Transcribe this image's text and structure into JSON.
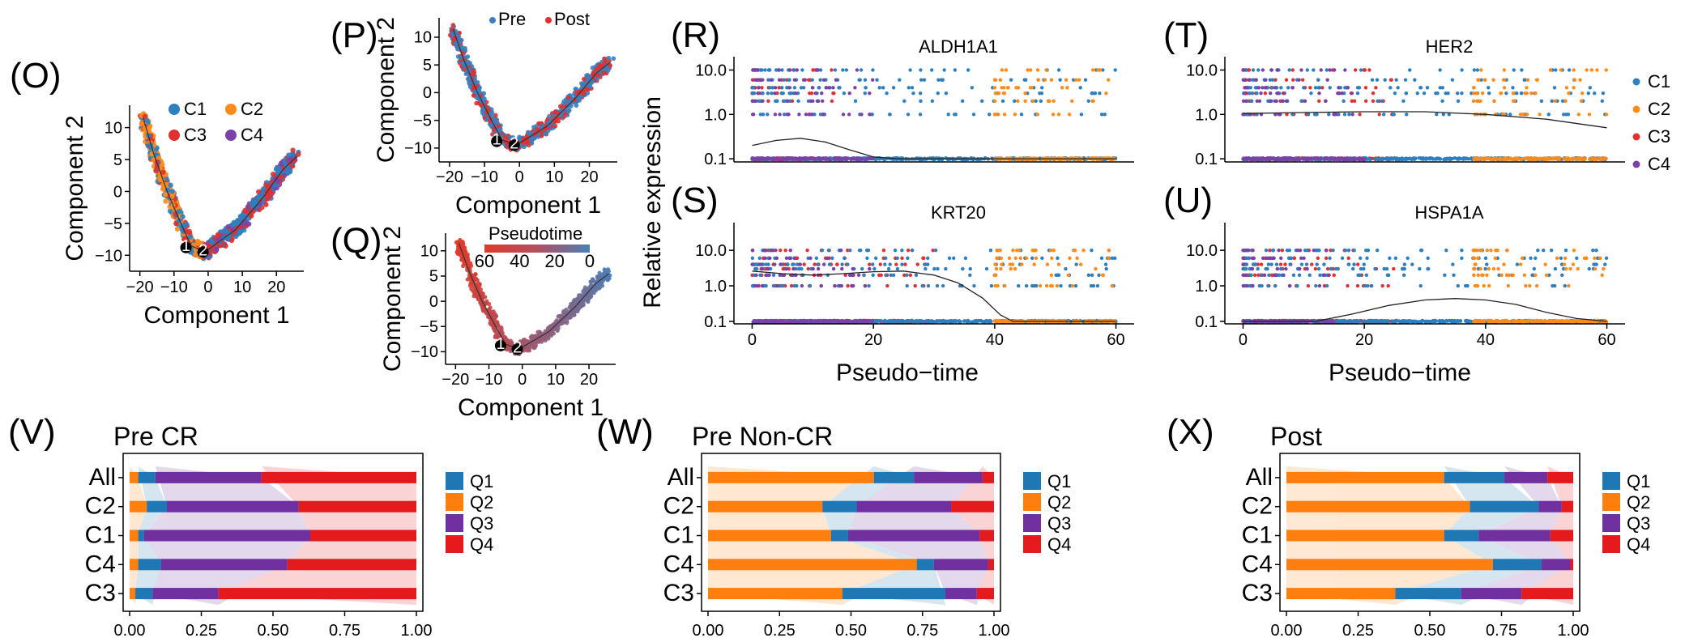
{
  "palette": {
    "C1": "#2e7fbf",
    "C2": "#ff8c1a",
    "C3": "#e03030",
    "C4": "#7a42a8",
    "Q1": "#1f77b4",
    "Q2": "#ff7f0e",
    "Q3": "#7030a0",
    "Q4": "#e41a1c",
    "Pre": "#3a7fbf",
    "Post": "#e03030",
    "pseudo_low": "#4a7fb8",
    "pseudo_mid": "#b05060",
    "pseudo_high": "#e03a2a"
  },
  "chart_data": [
    {
      "id": "O",
      "panel_label": "(O)",
      "type": "scatter",
      "xlabel": "Component 1",
      "ylabel": "Component 2",
      "xlim": [
        -23,
        28
      ],
      "ylim": [
        -12.5,
        13.5
      ],
      "xticks": [
        -20,
        -10,
        0,
        10,
        20
      ],
      "yticks": [
        -10,
        -5,
        0,
        5,
        10
      ],
      "xtick_labels": [
        "−20",
        "−10",
        "0",
        "10",
        "20"
      ],
      "ytick_labels": [
        "−10",
        "−5",
        "0",
        "5",
        "10"
      ],
      "legend": [
        {
          "name": "C1",
          "color_key": "C1"
        },
        {
          "name": "C2",
          "color_key": "C2"
        },
        {
          "name": "C3",
          "color_key": "C3"
        },
        {
          "name": "C4",
          "color_key": "C4"
        }
      ],
      "trajectory": [
        [
          -19,
          11.5
        ],
        [
          -16,
          6
        ],
        [
          -12,
          0
        ],
        [
          -8,
          -5
        ],
        [
          -5,
          -8.5
        ],
        [
          -1,
          -9.5
        ],
        [
          8,
          -6
        ],
        [
          16,
          -1
        ],
        [
          22,
          3.5
        ],
        [
          26,
          5.5
        ]
      ],
      "branch_points": [
        {
          "label": "1",
          "x": -6.5,
          "y": -8.8
        },
        {
          "label": "2",
          "x": -1.5,
          "y": -9.5
        }
      ]
    },
    {
      "id": "P",
      "panel_label": "(P)",
      "type": "scatter",
      "xlabel": "Component 1",
      "ylabel": "Component 2",
      "xlim": [
        -23,
        28
      ],
      "ylim": [
        -12.5,
        13.5
      ],
      "xticks": [
        -20,
        -10,
        0,
        10,
        20
      ],
      "yticks": [
        -10,
        -5,
        0,
        5,
        10
      ],
      "xtick_labels": [
        "−20",
        "−10",
        "0",
        "10",
        "20"
      ],
      "ytick_labels": [
        "−10",
        "−5",
        "0",
        "5",
        "10"
      ],
      "legend": [
        {
          "name": "Pre",
          "color_key": "Pre"
        },
        {
          "name": "Post",
          "color_key": "Post"
        }
      ],
      "trajectory": [
        [
          -19,
          11.5
        ],
        [
          -16,
          6
        ],
        [
          -12,
          0
        ],
        [
          -8,
          -5
        ],
        [
          -5,
          -8.5
        ],
        [
          -1,
          -9.5
        ],
        [
          8,
          -6
        ],
        [
          16,
          -1
        ],
        [
          22,
          3.5
        ],
        [
          26,
          5.5
        ]
      ],
      "branch_points": [
        {
          "label": "1",
          "x": -6.5,
          "y": -8.8
        },
        {
          "label": "2",
          "x": -1.5,
          "y": -9.5
        }
      ]
    },
    {
      "id": "Q",
      "panel_label": "(Q)",
      "type": "scatter",
      "xlabel": "Component 1",
      "ylabel": "Component 2",
      "xlim": [
        -23,
        28
      ],
      "ylim": [
        -12.5,
        13.5
      ],
      "xticks": [
        -20,
        -10,
        0,
        10,
        20
      ],
      "yticks": [
        -10,
        -5,
        0,
        5,
        10
      ],
      "xtick_labels": [
        "−20",
        "−10",
        "0",
        "10",
        "20"
      ],
      "ytick_labels": [
        "−10",
        "−5",
        "0",
        "5",
        "10"
      ],
      "colorbar": {
        "title": "Pseudotime",
        "ticks": [
          60,
          40,
          20,
          0
        ],
        "tick_labels": [
          "60",
          "40",
          "20",
          "0"
        ],
        "range": [
          0,
          60
        ]
      },
      "trajectory": [
        [
          -19,
          11.5
        ],
        [
          -16,
          6
        ],
        [
          -12,
          0
        ],
        [
          -8,
          -5
        ],
        [
          -5,
          -8.5
        ],
        [
          -1,
          -9.5
        ],
        [
          8,
          -6
        ],
        [
          16,
          -1
        ],
        [
          22,
          3.5
        ],
        [
          26,
          5.5
        ]
      ],
      "branch_points": [
        {
          "label": "1",
          "x": -6.5,
          "y": -8.8
        },
        {
          "label": "2",
          "x": -1.5,
          "y": -9.5
        }
      ]
    },
    {
      "id": "R",
      "panel_label": "(R)",
      "type": "scatter",
      "gene": "ALDH1A1",
      "xlim": [
        -3,
        63
      ],
      "xticks": [
        0,
        20,
        40,
        60
      ],
      "xtick_labels": [
        "0",
        "20",
        "40",
        "60"
      ],
      "yscale": "log",
      "ylim": [
        0.085,
        20
      ],
      "yticks": [
        0.1,
        1.0,
        10.0
      ],
      "ytick_labels": [
        "0.1",
        "1.0",
        "10.0"
      ],
      "cluster_ranges": [
        {
          "cluster": "C3",
          "x": [
            0,
            15
          ]
        },
        {
          "cluster": "C1",
          "x": [
            0,
            60
          ]
        },
        {
          "cluster": "C2",
          "x": [
            40,
            60
          ]
        },
        {
          "cluster": "C4",
          "x": [
            0,
            20
          ]
        }
      ],
      "trend": [
        [
          0,
          0.2
        ],
        [
          4,
          0.26
        ],
        [
          8,
          0.29
        ],
        [
          12,
          0.24
        ],
        [
          16,
          0.16
        ],
        [
          20,
          0.11
        ],
        [
          24,
          0.1
        ],
        [
          60,
          0.1
        ]
      ]
    },
    {
      "id": "T",
      "panel_label": "(T)",
      "type": "scatter",
      "gene": "HER2",
      "xlim": [
        -3,
        63
      ],
      "xticks": [
        0,
        20,
        40,
        60
      ],
      "xtick_labels": [
        "0",
        "20",
        "40",
        "60"
      ],
      "yscale": "log",
      "ylim": [
        0.085,
        20
      ],
      "yticks": [
        0.1,
        1.0,
        10.0
      ],
      "ytick_labels": [
        "0.1",
        "1.0",
        "10.0"
      ],
      "legend": [
        {
          "name": "C1",
          "color_key": "C1"
        },
        {
          "name": "C2",
          "color_key": "C2"
        },
        {
          "name": "C3",
          "color_key": "C3"
        },
        {
          "name": "C4",
          "color_key": "C4"
        }
      ],
      "cluster_ranges": [
        {
          "cluster": "C3",
          "x": [
            0,
            25
          ]
        },
        {
          "cluster": "C1",
          "x": [
            0,
            60
          ]
        },
        {
          "cluster": "C2",
          "x": [
            38,
            60
          ]
        },
        {
          "cluster": "C4",
          "x": [
            0,
            20
          ]
        }
      ],
      "trend": [
        [
          0,
          1.05
        ],
        [
          10,
          1.1
        ],
        [
          20,
          1.15
        ],
        [
          30,
          1.15
        ],
        [
          40,
          1.0
        ],
        [
          50,
          0.78
        ],
        [
          60,
          0.5
        ]
      ]
    },
    {
      "id": "S",
      "panel_label": "(S)",
      "type": "scatter",
      "gene": "KRT20",
      "xlim": [
        -3,
        63
      ],
      "xticks": [
        0,
        20,
        40,
        60
      ],
      "xtick_labels": [
        "0",
        "20",
        "40",
        "60"
      ],
      "yscale": "log",
      "ylim": [
        0.085,
        60
      ],
      "yticks": [
        0.1,
        1.0,
        10.0
      ],
      "ytick_labels": [
        "0.1",
        "1.0",
        "10.0"
      ],
      "axis_title": "Relative expression",
      "cluster_ranges": [
        {
          "cluster": "C3",
          "x": [
            0,
            30
          ]
        },
        {
          "cluster": "C1",
          "x": [
            0,
            60
          ]
        },
        {
          "cluster": "C2",
          "x": [
            40,
            60
          ]
        },
        {
          "cluster": "C4",
          "x": [
            0,
            20
          ]
        }
      ],
      "trend": [
        [
          0,
          2.6
        ],
        [
          5,
          2.2
        ],
        [
          10,
          2.0
        ],
        [
          15,
          2.2
        ],
        [
          20,
          2.5
        ],
        [
          25,
          2.6
        ],
        [
          30,
          2.0
        ],
        [
          34,
          1.2
        ],
        [
          38,
          0.45
        ],
        [
          41,
          0.15
        ],
        [
          43,
          0.1
        ],
        [
          60,
          0.1
        ]
      ]
    },
    {
      "id": "U",
      "panel_label": "(U)",
      "type": "scatter",
      "gene": "HSPA1A",
      "xlim": [
        -3,
        63
      ],
      "xticks": [
        0,
        20,
        40,
        60
      ],
      "xtick_labels": [
        "0",
        "20",
        "40",
        "60"
      ],
      "yscale": "log",
      "ylim": [
        0.085,
        60
      ],
      "yticks": [
        0.1,
        1.0,
        10.0
      ],
      "ytick_labels": [
        "0.1",
        "1.0",
        "10.0"
      ],
      "cluster_ranges": [
        {
          "cluster": "C3",
          "x": [
            0,
            25
          ]
        },
        {
          "cluster": "C1",
          "x": [
            0,
            60
          ]
        },
        {
          "cluster": "C2",
          "x": [
            38,
            60
          ]
        },
        {
          "cluster": "C4",
          "x": [
            0,
            15
          ]
        }
      ],
      "trend": [
        [
          0,
          0.1
        ],
        [
          12,
          0.1
        ],
        [
          18,
          0.16
        ],
        [
          24,
          0.28
        ],
        [
          30,
          0.4
        ],
        [
          35,
          0.44
        ],
        [
          40,
          0.4
        ],
        [
          45,
          0.3
        ],
        [
          50,
          0.18
        ],
        [
          55,
          0.12
        ],
        [
          60,
          0.1
        ]
      ]
    },
    {
      "id": "V",
      "panel_label": "(V)",
      "type": "bar",
      "orientation": "horizontal",
      "stacked": true,
      "subtitle": "Pre CR",
      "categories": [
        "All",
        "C2",
        "C1",
        "C4",
        "C3"
      ],
      "xlim": [
        0,
        1
      ],
      "xticks": [
        0,
        0.25,
        0.5,
        0.75,
        1.0
      ],
      "xtick_labels": [
        "0.00",
        "0.25",
        "0.50",
        "0.75",
        "1.00"
      ],
      "series": [
        {
          "name": "Q2",
          "values": [
            0.03,
            0.06,
            0.03,
            0.03,
            0.02
          ]
        },
        {
          "name": "Q1",
          "values": [
            0.06,
            0.07,
            0.02,
            0.08,
            0.06
          ]
        },
        {
          "name": "Q3",
          "values": [
            0.37,
            0.46,
            0.58,
            0.44,
            0.23
          ]
        },
        {
          "name": "Q4",
          "values": [
            0.54,
            0.41,
            0.37,
            0.45,
            0.69
          ]
        }
      ],
      "legend": [
        "Q1",
        "Q2",
        "Q3",
        "Q4"
      ]
    },
    {
      "id": "W",
      "panel_label": "(W)",
      "type": "bar",
      "orientation": "horizontal",
      "stacked": true,
      "subtitle": "Pre Non-CR",
      "categories": [
        "All",
        "C2",
        "C1",
        "C4",
        "C3"
      ],
      "xlim": [
        0,
        1
      ],
      "xticks": [
        0,
        0.25,
        0.5,
        0.75,
        1.0
      ],
      "xtick_labels": [
        "0.00",
        "0.25",
        "0.50",
        "0.75",
        "1.00"
      ],
      "series": [
        {
          "name": "Q2",
          "values": [
            0.58,
            0.4,
            0.43,
            0.73,
            0.47
          ]
        },
        {
          "name": "Q1",
          "values": [
            0.14,
            0.12,
            0.06,
            0.06,
            0.36
          ]
        },
        {
          "name": "Q3",
          "values": [
            0.24,
            0.33,
            0.46,
            0.19,
            0.11
          ]
        },
        {
          "name": "Q4",
          "values": [
            0.04,
            0.15,
            0.05,
            0.02,
            0.06
          ]
        }
      ],
      "legend": [
        "Q1",
        "Q2",
        "Q3",
        "Q4"
      ]
    },
    {
      "id": "X",
      "panel_label": "(X)",
      "type": "bar",
      "orientation": "horizontal",
      "stacked": true,
      "subtitle": "Post",
      "categories": [
        "All",
        "C2",
        "C1",
        "C4",
        "C3"
      ],
      "xlim": [
        0,
        1
      ],
      "xticks": [
        0,
        0.25,
        0.5,
        0.75,
        1.0
      ],
      "xtick_labels": [
        "0.00",
        "0.25",
        "0.50",
        "0.75",
        "1.00"
      ],
      "series": [
        {
          "name": "Q2",
          "values": [
            0.55,
            0.64,
            0.55,
            0.72,
            0.38
          ]
        },
        {
          "name": "Q1",
          "values": [
            0.21,
            0.24,
            0.12,
            0.17,
            0.23
          ]
        },
        {
          "name": "Q3",
          "values": [
            0.15,
            0.08,
            0.25,
            0.1,
            0.21
          ]
        },
        {
          "name": "Q4",
          "values": [
            0.09,
            0.04,
            0.08,
            0.01,
            0.18
          ]
        }
      ],
      "legend": [
        "Q1",
        "Q2",
        "Q3",
        "Q4"
      ]
    }
  ],
  "shared": {
    "pseudotime_xlabel": "Pseudo−time",
    "expression_ylabel": "Relative expression"
  }
}
